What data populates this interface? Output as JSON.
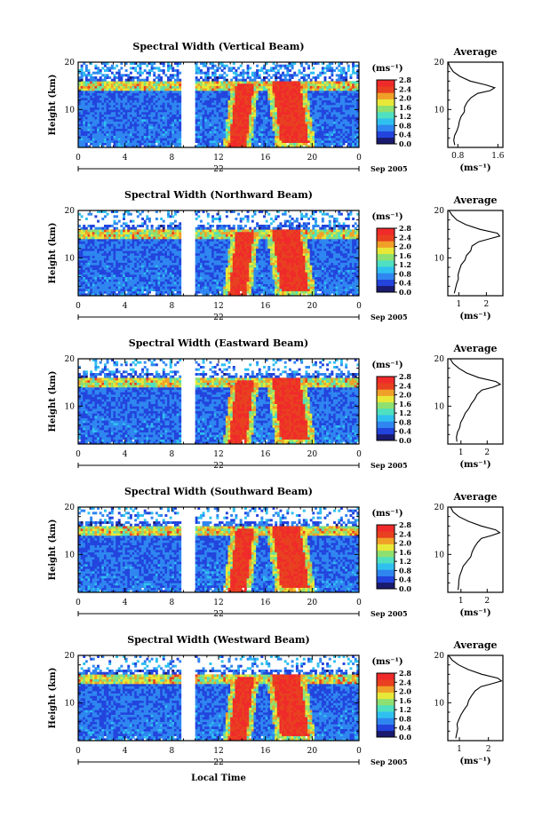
{
  "figure": {
    "xlabel": "Local Time",
    "date_label": "Sep 2005",
    "day_label": "22",
    "unit_label": "(ms⁻¹)",
    "colorbar_ticks": [
      "2.8",
      "2.4",
      "2.0",
      "1.6",
      "1.2",
      "0.8",
      "0.4",
      "0.0"
    ],
    "ylabel": "Height (km)",
    "avg_title": "Average",
    "avg_xlabel": "(ms⁻¹)",
    "colors": {
      "scale": [
        "#1a1a6e",
        "#2244dd",
        "#2f86f0",
        "#2fc0f0",
        "#4ee0c0",
        "#8ee070",
        "#e8e838",
        "#f0a028",
        "#e84020",
        "#f02a2a"
      ],
      "background": "#ffffff"
    }
  },
  "chart_data": [
    {
      "type": "heatmap",
      "title": "Spectral Width (Vertical Beam)",
      "x_ticks": [
        "0",
        "4",
        "8",
        "12",
        "16",
        "20",
        "0"
      ],
      "y_ticks": [
        "10",
        "20"
      ],
      "xlim": [
        0,
        24
      ],
      "ylim": [
        2,
        20
      ],
      "avg_x_ticks": [
        "0.8",
        "1.6"
      ],
      "avg_xlim": [
        0.6,
        1.7
      ],
      "avg_profile": [
        [
          0.62,
          20
        ],
        [
          0.66,
          19
        ],
        [
          0.72,
          18
        ],
        [
          0.84,
          17
        ],
        [
          1.05,
          16
        ],
        [
          1.35,
          15.2
        ],
        [
          1.55,
          14.6
        ],
        [
          1.45,
          14
        ],
        [
          1.2,
          13.4
        ],
        [
          1.05,
          12.5
        ],
        [
          1.0,
          11.5
        ],
        [
          0.95,
          10.5
        ],
        [
          0.92,
          9.5
        ],
        [
          0.86,
          8.5
        ],
        [
          0.82,
          7.5
        ],
        [
          0.8,
          6.5
        ],
        [
          0.78,
          5.5
        ],
        [
          0.75,
          4.5
        ],
        [
          0.73,
          3.5
        ],
        [
          0.72,
          2.5
        ]
      ]
    },
    {
      "type": "heatmap",
      "title": "Spectral Width (Northward Beam)",
      "x_ticks": [
        "0",
        "4",
        "8",
        "12",
        "16",
        "20",
        "0"
      ],
      "y_ticks": [
        "10",
        "20"
      ],
      "xlim": [
        0,
        24
      ],
      "ylim": [
        2,
        20
      ],
      "avg_x_ticks": [
        "1",
        "2"
      ],
      "avg_xlim": [
        0.6,
        2.6
      ],
      "avg_profile": [
        [
          0.62,
          20
        ],
        [
          0.75,
          19
        ],
        [
          0.95,
          18
        ],
        [
          1.25,
          17
        ],
        [
          1.8,
          16
        ],
        [
          2.4,
          15.2
        ],
        [
          2.5,
          14.6
        ],
        [
          2.1,
          14
        ],
        [
          1.7,
          13.4
        ],
        [
          1.5,
          12.5
        ],
        [
          1.4,
          11.5
        ],
        [
          1.3,
          10.5
        ],
        [
          1.2,
          9.5
        ],
        [
          1.1,
          8.5
        ],
        [
          1.0,
          7.5
        ],
        [
          0.98,
          6.5
        ],
        [
          0.95,
          5.5
        ],
        [
          0.9,
          4.5
        ],
        [
          0.88,
          3.5
        ],
        [
          0.85,
          2.5
        ]
      ]
    },
    {
      "type": "heatmap",
      "title": "Spectral Width (Eastward Beam)",
      "x_ticks": [
        "0",
        "4",
        "8",
        "12",
        "16",
        "20",
        "0"
      ],
      "y_ticks": [
        "10",
        "20"
      ],
      "xlim": [
        0,
        24
      ],
      "ylim": [
        2,
        20
      ],
      "avg_x_ticks": [
        "1",
        "2"
      ],
      "avg_xlim": [
        0.5,
        2.6
      ],
      "avg_profile": [
        [
          0.58,
          20
        ],
        [
          0.7,
          19
        ],
        [
          0.9,
          18
        ],
        [
          1.2,
          17
        ],
        [
          1.7,
          16
        ],
        [
          2.3,
          15.2
        ],
        [
          2.5,
          14.6
        ],
        [
          2.2,
          14
        ],
        [
          1.8,
          13.4
        ],
        [
          1.6,
          12.5
        ],
        [
          1.5,
          11.5
        ],
        [
          1.4,
          10.5
        ],
        [
          1.3,
          9.5
        ],
        [
          1.15,
          8.5
        ],
        [
          1.05,
          7.5
        ],
        [
          1.0,
          6.5
        ],
        [
          0.95,
          5.5
        ],
        [
          0.9,
          4.5
        ],
        [
          0.86,
          3.5
        ],
        [
          0.82,
          2.5
        ]
      ]
    },
    {
      "type": "heatmap",
      "title": "Spectral Width (Southward Beam)",
      "x_ticks": [
        "0",
        "4",
        "8",
        "12",
        "16",
        "20",
        "0"
      ],
      "y_ticks": [
        "10",
        "20"
      ],
      "xlim": [
        0,
        24
      ],
      "ylim": [
        2,
        20
      ],
      "avg_x_ticks": [
        "1",
        "2"
      ],
      "avg_xlim": [
        0.5,
        2.6
      ],
      "avg_profile": [
        [
          0.6,
          20
        ],
        [
          0.72,
          19
        ],
        [
          0.95,
          18
        ],
        [
          1.3,
          17
        ],
        [
          1.8,
          16
        ],
        [
          2.35,
          15.2
        ],
        [
          2.5,
          14.6
        ],
        [
          2.2,
          14
        ],
        [
          1.8,
          13.4
        ],
        [
          1.6,
          12.5
        ],
        [
          1.5,
          11.5
        ],
        [
          1.45,
          10.5
        ],
        [
          1.35,
          9.5
        ],
        [
          1.2,
          8.5
        ],
        [
          1.1,
          7.5
        ],
        [
          1.05,
          6.5
        ],
        [
          0.98,
          5.5
        ],
        [
          0.94,
          4.5
        ],
        [
          0.9,
          3.5
        ],
        [
          0.86,
          2.5
        ]
      ]
    },
    {
      "type": "heatmap",
      "title": "Spectral Width (Westward Beam)",
      "x_ticks": [
        "0",
        "4",
        "8",
        "12",
        "16",
        "20",
        "0"
      ],
      "y_ticks": [
        "10",
        "20"
      ],
      "xlim": [
        0,
        24
      ],
      "ylim": [
        2,
        20
      ],
      "avg_x_ticks": [
        "1",
        "2"
      ],
      "avg_xlim": [
        0.6,
        2.5
      ],
      "avg_profile": [
        [
          0.65,
          20
        ],
        [
          0.78,
          19
        ],
        [
          1.0,
          18
        ],
        [
          1.3,
          17
        ],
        [
          1.8,
          16
        ],
        [
          2.3,
          15.2
        ],
        [
          2.45,
          14.6
        ],
        [
          2.1,
          14
        ],
        [
          1.75,
          13.4
        ],
        [
          1.55,
          12.5
        ],
        [
          1.45,
          11.5
        ],
        [
          1.35,
          10.5
        ],
        [
          1.25,
          9.5
        ],
        [
          1.15,
          8.5
        ],
        [
          1.05,
          7.5
        ],
        [
          1.0,
          6.5
        ],
        [
          0.95,
          5.5
        ],
        [
          0.92,
          4.5
        ],
        [
          0.88,
          3.5
        ],
        [
          0.85,
          2.5
        ]
      ]
    }
  ]
}
